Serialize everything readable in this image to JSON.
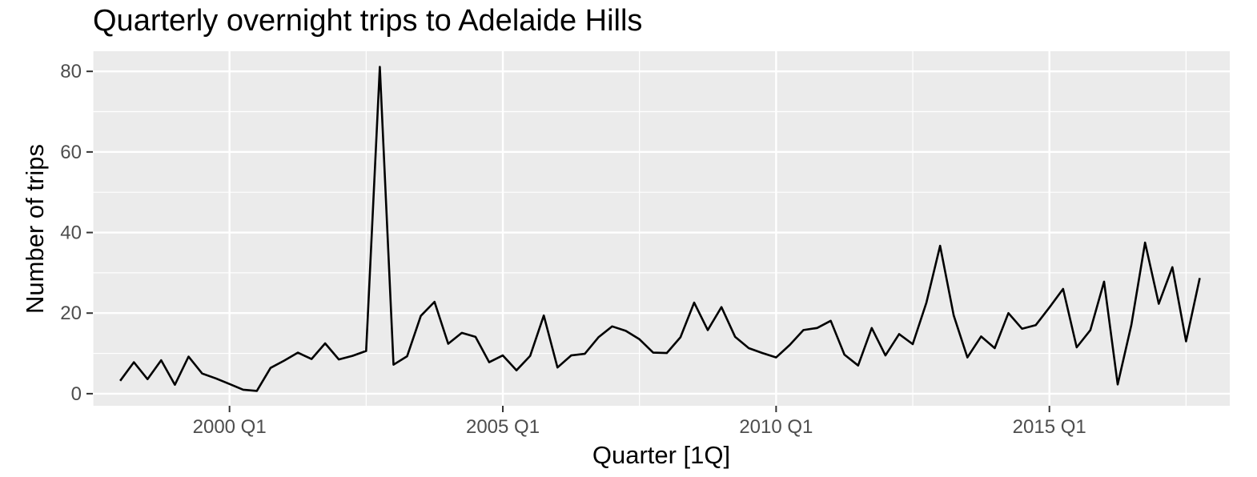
{
  "chart_data": {
    "type": "line",
    "title": "Quarterly overnight trips to Adelaide Hills",
    "xlabel": "Quarter [1Q]",
    "ylabel": "Number of trips",
    "xlim": [
      1997.5,
      2018.3
    ],
    "ylim": [
      -3,
      85
    ],
    "x_ticks": [
      {
        "value": 2000.0,
        "label": "2000 Q1"
      },
      {
        "value": 2005.0,
        "label": "2005 Q1"
      },
      {
        "value": 2010.0,
        "label": "2010 Q1"
      },
      {
        "value": 2015.0,
        "label": "2015 Q1"
      }
    ],
    "y_ticks": [
      0,
      20,
      40,
      60,
      80
    ],
    "grid": true,
    "series_color": "#000000",
    "panel_color": "#ebebeb",
    "grid_color": "#ffffff",
    "series": [
      {
        "x": [
          1998.0,
          1998.25,
          1998.5,
          1998.75,
          1999.0,
          1999.25,
          1999.5,
          1999.75,
          2000.0,
          2000.25,
          2000.5,
          2000.75,
          2001.0,
          2001.25,
          2001.5,
          2001.75,
          2002.0,
          2002.25,
          2002.5,
          2002.75,
          2003.0,
          2003.25,
          2003.5,
          2003.75,
          2004.0,
          2004.25,
          2004.5,
          2004.75,
          2005.0,
          2005.25,
          2005.5,
          2005.75,
          2006.0,
          2006.25,
          2006.5,
          2006.75,
          2007.0,
          2007.25,
          2007.5,
          2007.75,
          2008.0,
          2008.25,
          2008.5,
          2008.75,
          2009.0,
          2009.25,
          2009.5,
          2009.75,
          2010.0,
          2010.25,
          2010.5,
          2010.75,
          2011.0,
          2011.25,
          2011.5,
          2011.75,
          2012.0,
          2012.25,
          2012.5,
          2012.75,
          2013.0,
          2013.25,
          2013.5,
          2013.75,
          2014.0,
          2014.25,
          2014.5,
          2014.75,
          2015.0,
          2015.25,
          2015.5,
          2015.75,
          2016.0,
          2016.25,
          2016.5,
          2016.75,
          2017.0,
          2017.25,
          2017.5,
          2017.75
        ],
        "values": [
          3.2,
          7.8,
          3.6,
          8.3,
          2.2,
          9.2,
          5.0,
          3.8,
          2.4,
          1.0,
          0.7,
          6.4,
          8.2,
          10.2,
          8.6,
          12.5,
          8.5,
          9.4,
          10.6,
          81.1,
          7.2,
          9.3,
          19.3,
          22.8,
          12.4,
          15.1,
          14.1,
          7.8,
          9.5,
          5.8,
          9.4,
          19.4,
          6.5,
          9.5,
          9.9,
          14.0,
          16.7,
          15.6,
          13.5,
          10.2,
          10.1,
          14.0,
          22.6,
          15.8,
          21.5,
          14.1,
          11.3,
          10.1,
          9.0,
          12.1,
          15.8,
          16.3,
          18.1,
          9.7,
          7.0,
          16.3,
          9.5,
          14.8,
          12.3,
          22.6,
          36.7,
          19.4,
          9.0,
          14.2,
          11.3,
          20.0,
          16.1,
          17.0,
          21.4,
          26.0,
          11.5,
          15.8,
          27.8,
          2.3,
          17.1,
          37.5,
          22.3,
          31.4,
          13.0,
          28.7
        ]
      }
    ]
  }
}
